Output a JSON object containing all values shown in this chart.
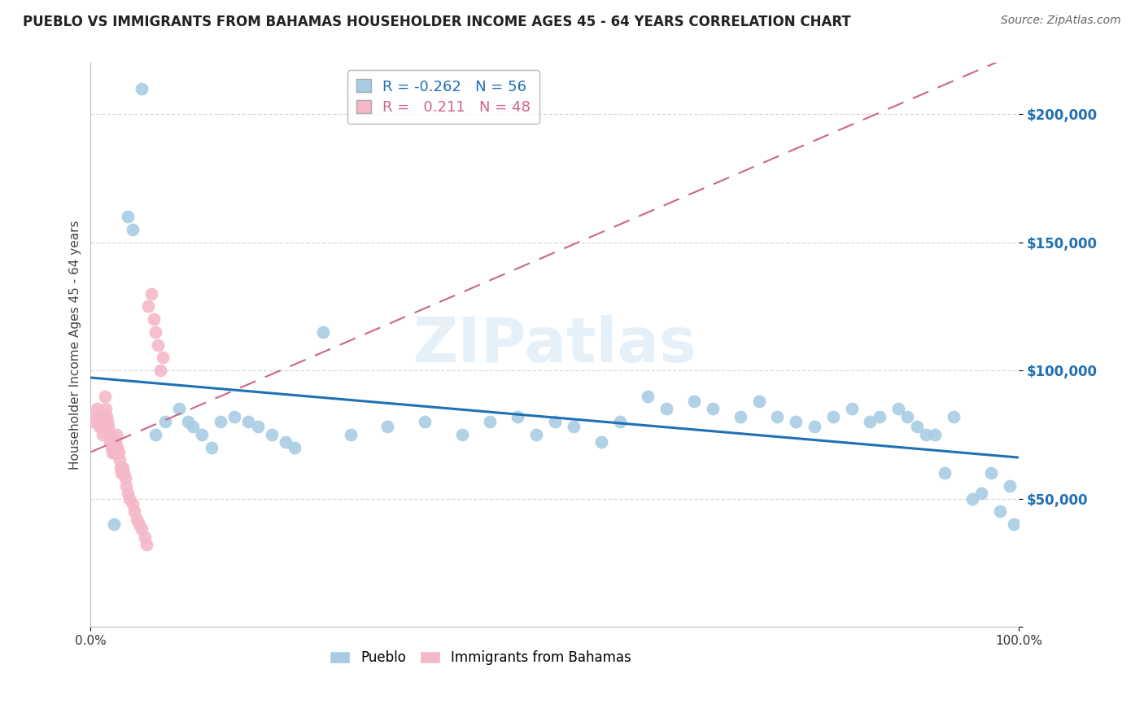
{
  "title": "PUEBLO VS IMMIGRANTS FROM BAHAMAS HOUSEHOLDER INCOME AGES 45 - 64 YEARS CORRELATION CHART",
  "source": "Source: ZipAtlas.com",
  "ylabel": "Householder Income Ages 45 - 64 years",
  "xlim": [
    0.0,
    100.0
  ],
  "ylim": [
    0,
    220000
  ],
  "watermark": "ZIPatlas",
  "legend1_R": "-0.262",
  "legend1_N": "56",
  "legend2_R": "0.211",
  "legend2_N": "48",
  "blue_color": "#a8cce4",
  "pink_color": "#f4b8c8",
  "line_blue": "#2070b4",
  "line_pink": "#cc6688",
  "pueblo_x": [
    2.5,
    4.0,
    4.5,
    5.5,
    7.0,
    8.0,
    9.5,
    10.5,
    11.0,
    12.0,
    13.0,
    14.0,
    15.5,
    17.0,
    18.0,
    19.5,
    21.0,
    22.0,
    25.0,
    28.0,
    32.0,
    36.0,
    40.0,
    43.0,
    46.0,
    48.0,
    50.0,
    52.0,
    55.0,
    57.0,
    60.0,
    62.0,
    65.0,
    67.0,
    70.0,
    72.0,
    74.0,
    76.0,
    78.0,
    80.0,
    82.0,
    84.0,
    85.0,
    87.0,
    88.0,
    89.0,
    90.0,
    91.0,
    92.0,
    93.0,
    95.0,
    96.0,
    97.0,
    98.0,
    99.0,
    99.5
  ],
  "pueblo_y": [
    40000,
    160000,
    155000,
    210000,
    75000,
    80000,
    85000,
    80000,
    78000,
    75000,
    70000,
    80000,
    82000,
    80000,
    78000,
    75000,
    72000,
    70000,
    115000,
    75000,
    78000,
    80000,
    75000,
    80000,
    82000,
    75000,
    80000,
    78000,
    72000,
    80000,
    90000,
    85000,
    88000,
    85000,
    82000,
    88000,
    82000,
    80000,
    78000,
    82000,
    85000,
    80000,
    82000,
    85000,
    82000,
    78000,
    75000,
    75000,
    60000,
    82000,
    50000,
    52000,
    60000,
    45000,
    55000,
    40000
  ],
  "bahamas_x": [
    0.3,
    0.5,
    0.7,
    0.9,
    1.0,
    1.1,
    1.2,
    1.3,
    1.4,
    1.5,
    1.6,
    1.7,
    1.8,
    1.9,
    2.0,
    2.1,
    2.2,
    2.3,
    2.4,
    2.5,
    2.6,
    2.7,
    2.8,
    2.9,
    3.0,
    3.1,
    3.2,
    3.3,
    3.5,
    3.6,
    3.7,
    3.8,
    4.0,
    4.2,
    4.5,
    4.7,
    5.0,
    5.2,
    5.5,
    5.8,
    6.0,
    6.2,
    6.5,
    6.8,
    7.0,
    7.2,
    7.5,
    7.8
  ],
  "bahamas_y": [
    80000,
    82000,
    85000,
    78000,
    82000,
    80000,
    78000,
    75000,
    80000,
    90000,
    85000,
    82000,
    80000,
    78000,
    75000,
    72000,
    70000,
    68000,
    72000,
    70000,
    68000,
    72000,
    75000,
    70000,
    68000,
    65000,
    62000,
    60000,
    62000,
    60000,
    58000,
    55000,
    52000,
    50000,
    48000,
    45000,
    42000,
    40000,
    38000,
    35000,
    32000,
    125000,
    130000,
    120000,
    115000,
    110000,
    100000,
    105000
  ],
  "background_color": "#ffffff",
  "grid_color": "#d8d8d8"
}
